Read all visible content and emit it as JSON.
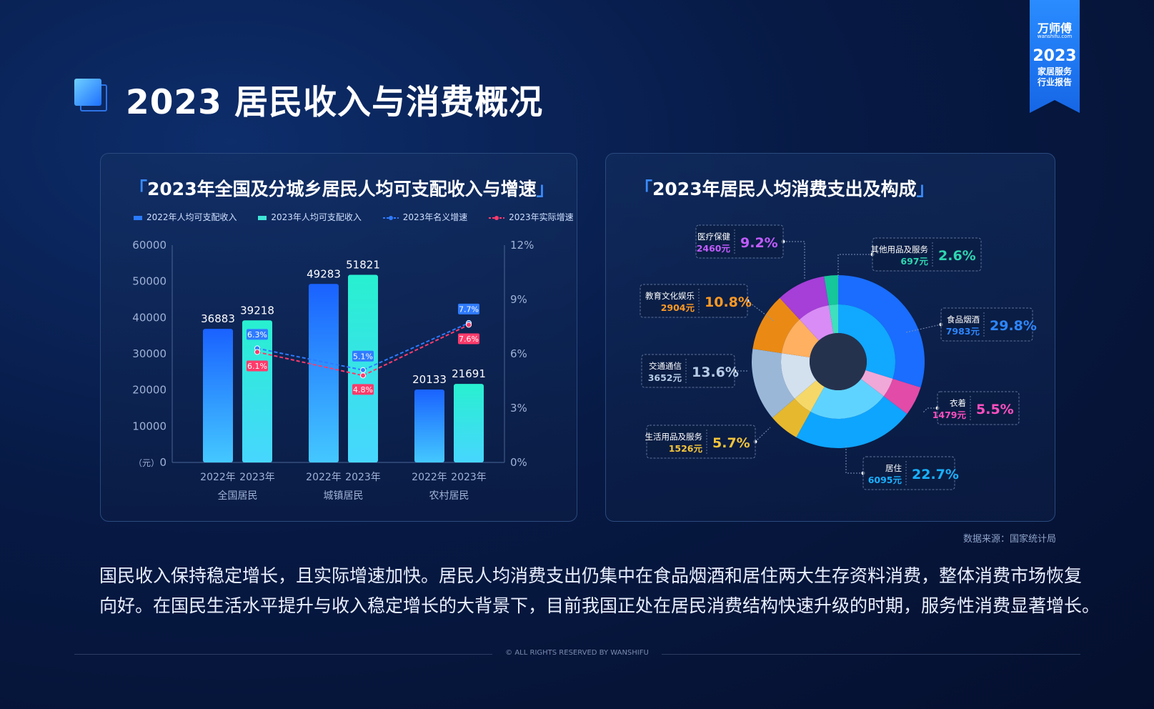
{
  "page": {
    "title": "2023 居民收入与消费概况",
    "ribbon": {
      "brand": "万师傅",
      "brand_sub": "wanshifu.com",
      "year": "2023",
      "line1": "家居服务",
      "line2": "行业报告"
    },
    "source": "数据来源：国家统计局",
    "summary_line1": "国民收入保持稳定增长，且实际增速加快。居民人均消费支出仍集中在食品烟酒和居住两大生存资料消费，整体消费市场恢复",
    "summary_line2": "向好。在国民生活水平提升与收入稳定增长的大背景下，目前我国正处在居民消费结构快速升级的时期，服务性消费显著增长。",
    "footer": "© ALL RIGHTS RESERVED BY WANSHIFU"
  },
  "colors": {
    "bar2022": "#1e6dff",
    "bar2023": "#2ee8d3",
    "nominal": "#2f7bff",
    "real": "#ff3b6b",
    "accent": "#3a8cff"
  },
  "chart_data": [
    {
      "type": "bar",
      "title": "2023年全国及分城乡居民人均可支配收入与增速",
      "legend": [
        "2022年人均可支配收入",
        "2023年人均可支配收入",
        "2023年名义增速",
        "2023年实际增速"
      ],
      "groups": [
        "全国居民",
        "城镇居民",
        "农村居民"
      ],
      "year_labels": [
        "2022年",
        "2023年"
      ],
      "series": [
        {
          "name": "2022年人均可支配收入",
          "values": [
            36883,
            49283,
            20133
          ]
        },
        {
          "name": "2023年人均可支配收入",
          "values": [
            39218,
            51821,
            21691
          ]
        }
      ],
      "lines": [
        {
          "name": "2023年名义增速",
          "values": [
            6.3,
            5.1,
            7.7
          ],
          "labels": [
            "6.3%",
            "5.1%",
            "7.7%"
          ]
        },
        {
          "name": "2023年实际增速",
          "values": [
            6.1,
            4.8,
            7.6
          ],
          "labels": [
            "6.1%",
            "4.8%",
            "7.6%"
          ]
        }
      ],
      "ylabel_left": "（元）",
      "ylim_left": [
        0,
        60000
      ],
      "yticks_left": [
        "0",
        "10000",
        "20000",
        "30000",
        "40000",
        "50000",
        "60000"
      ],
      "ylim_right": [
        0,
        12
      ],
      "yticks_right": [
        "0%",
        "3%",
        "6%",
        "9%",
        "12%"
      ]
    },
    {
      "type": "pie",
      "title": "2023年居民人均消费支出及构成",
      "slices": [
        {
          "name": "食品烟酒",
          "amount": "7983元",
          "percent": 29.8,
          "label": "29.8%",
          "color": "#1a6dff",
          "inner": "#11a8ff",
          "text_color": "#2d86ff"
        },
        {
          "name": "衣着",
          "amount": "1479元",
          "percent": 5.5,
          "label": "5.5%",
          "color": "#e24ba8",
          "inner": "#f0a8d8",
          "text_color": "#ff4fbf"
        },
        {
          "name": "居住",
          "amount": "6095元",
          "percent": 22.7,
          "label": "22.7%",
          "color": "#0ea5ff",
          "inner": "#5fd3ff",
          "text_color": "#19b1ff"
        },
        {
          "name": "生活用品及服务",
          "amount": "1526元",
          "percent": 5.7,
          "label": "5.7%",
          "color": "#e6b82e",
          "inner": "#f5d868",
          "text_color": "#f2c43a"
        },
        {
          "name": "交通通信",
          "amount": "3652元",
          "percent": 13.6,
          "label": "13.6%",
          "color": "#9ab7d8",
          "inner": "#d3e0ee",
          "text_color": "#b5cbe6"
        },
        {
          "name": "教育文化娱乐",
          "amount": "2904元",
          "percent": 10.8,
          "label": "10.8%",
          "color": "#ea8a14",
          "inner": "#ffb060",
          "text_color": "#ff9a24"
        },
        {
          "name": "医疗保健",
          "amount": "2460元",
          "percent": 9.2,
          "label": "9.2%",
          "color": "#a63ed8",
          "inner": "#d98cf5",
          "text_color": "#c15cff"
        },
        {
          "name": "其他用品及服务",
          "amount": "697元",
          "percent": 2.6,
          "label": "2.6%",
          "color": "#15c79a",
          "inner": "#3fe0bd",
          "text_color": "#2ed6b0"
        }
      ]
    }
  ]
}
